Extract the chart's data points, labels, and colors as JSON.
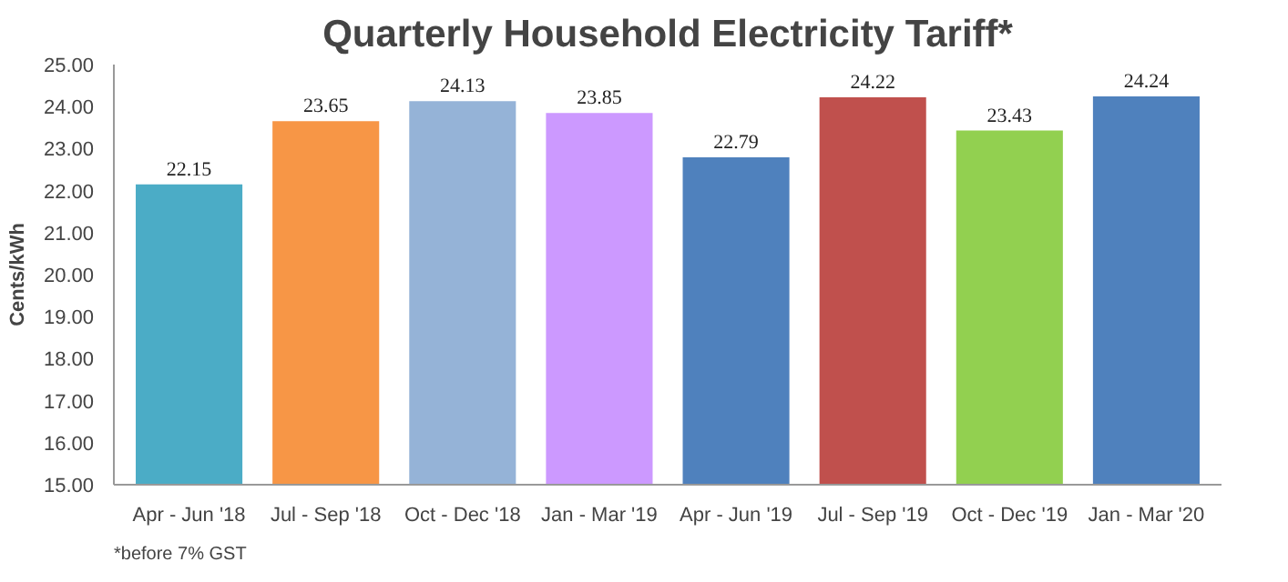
{
  "chart_data": {
    "type": "bar",
    "title": "Quarterly Household Electricity Tariff*",
    "ylabel": "Cents/kWh",
    "categories": [
      "Apr - Jun '18",
      "Jul - Sep '18",
      "Oct - Dec '18",
      "Jan - Mar '19",
      "Apr - Jun '19",
      "Jul - Sep '19",
      "Oct - Dec '19",
      "Jan - Mar '20"
    ],
    "values": [
      22.15,
      23.65,
      24.13,
      23.85,
      22.79,
      24.22,
      23.43,
      24.24
    ],
    "colors": [
      "#4bacc6",
      "#f79646",
      "#95b3d7",
      "#cc99ff",
      "#4f81bd",
      "#c0504d",
      "#92d050",
      "#4f81bd"
    ],
    "ylim": [
      15,
      25
    ],
    "yticks": [
      {
        "value": 15,
        "label": "15.00"
      },
      {
        "value": 16,
        "label": "16.00"
      },
      {
        "value": 17,
        "label": "17.00"
      },
      {
        "value": 18,
        "label": "18.00"
      },
      {
        "value": 19,
        "label": "19.00"
      },
      {
        "value": 20,
        "label": "20.00"
      },
      {
        "value": 21,
        "label": "21.00"
      },
      {
        "value": 22,
        "label": "22.00"
      },
      {
        "value": 23,
        "label": "23.00"
      },
      {
        "value": 24,
        "label": "24.00"
      },
      {
        "value": 25,
        "label": "25.00"
      }
    ],
    "data_labels": true,
    "grid": false,
    "annotations": [
      "*before 7% GST"
    ]
  }
}
